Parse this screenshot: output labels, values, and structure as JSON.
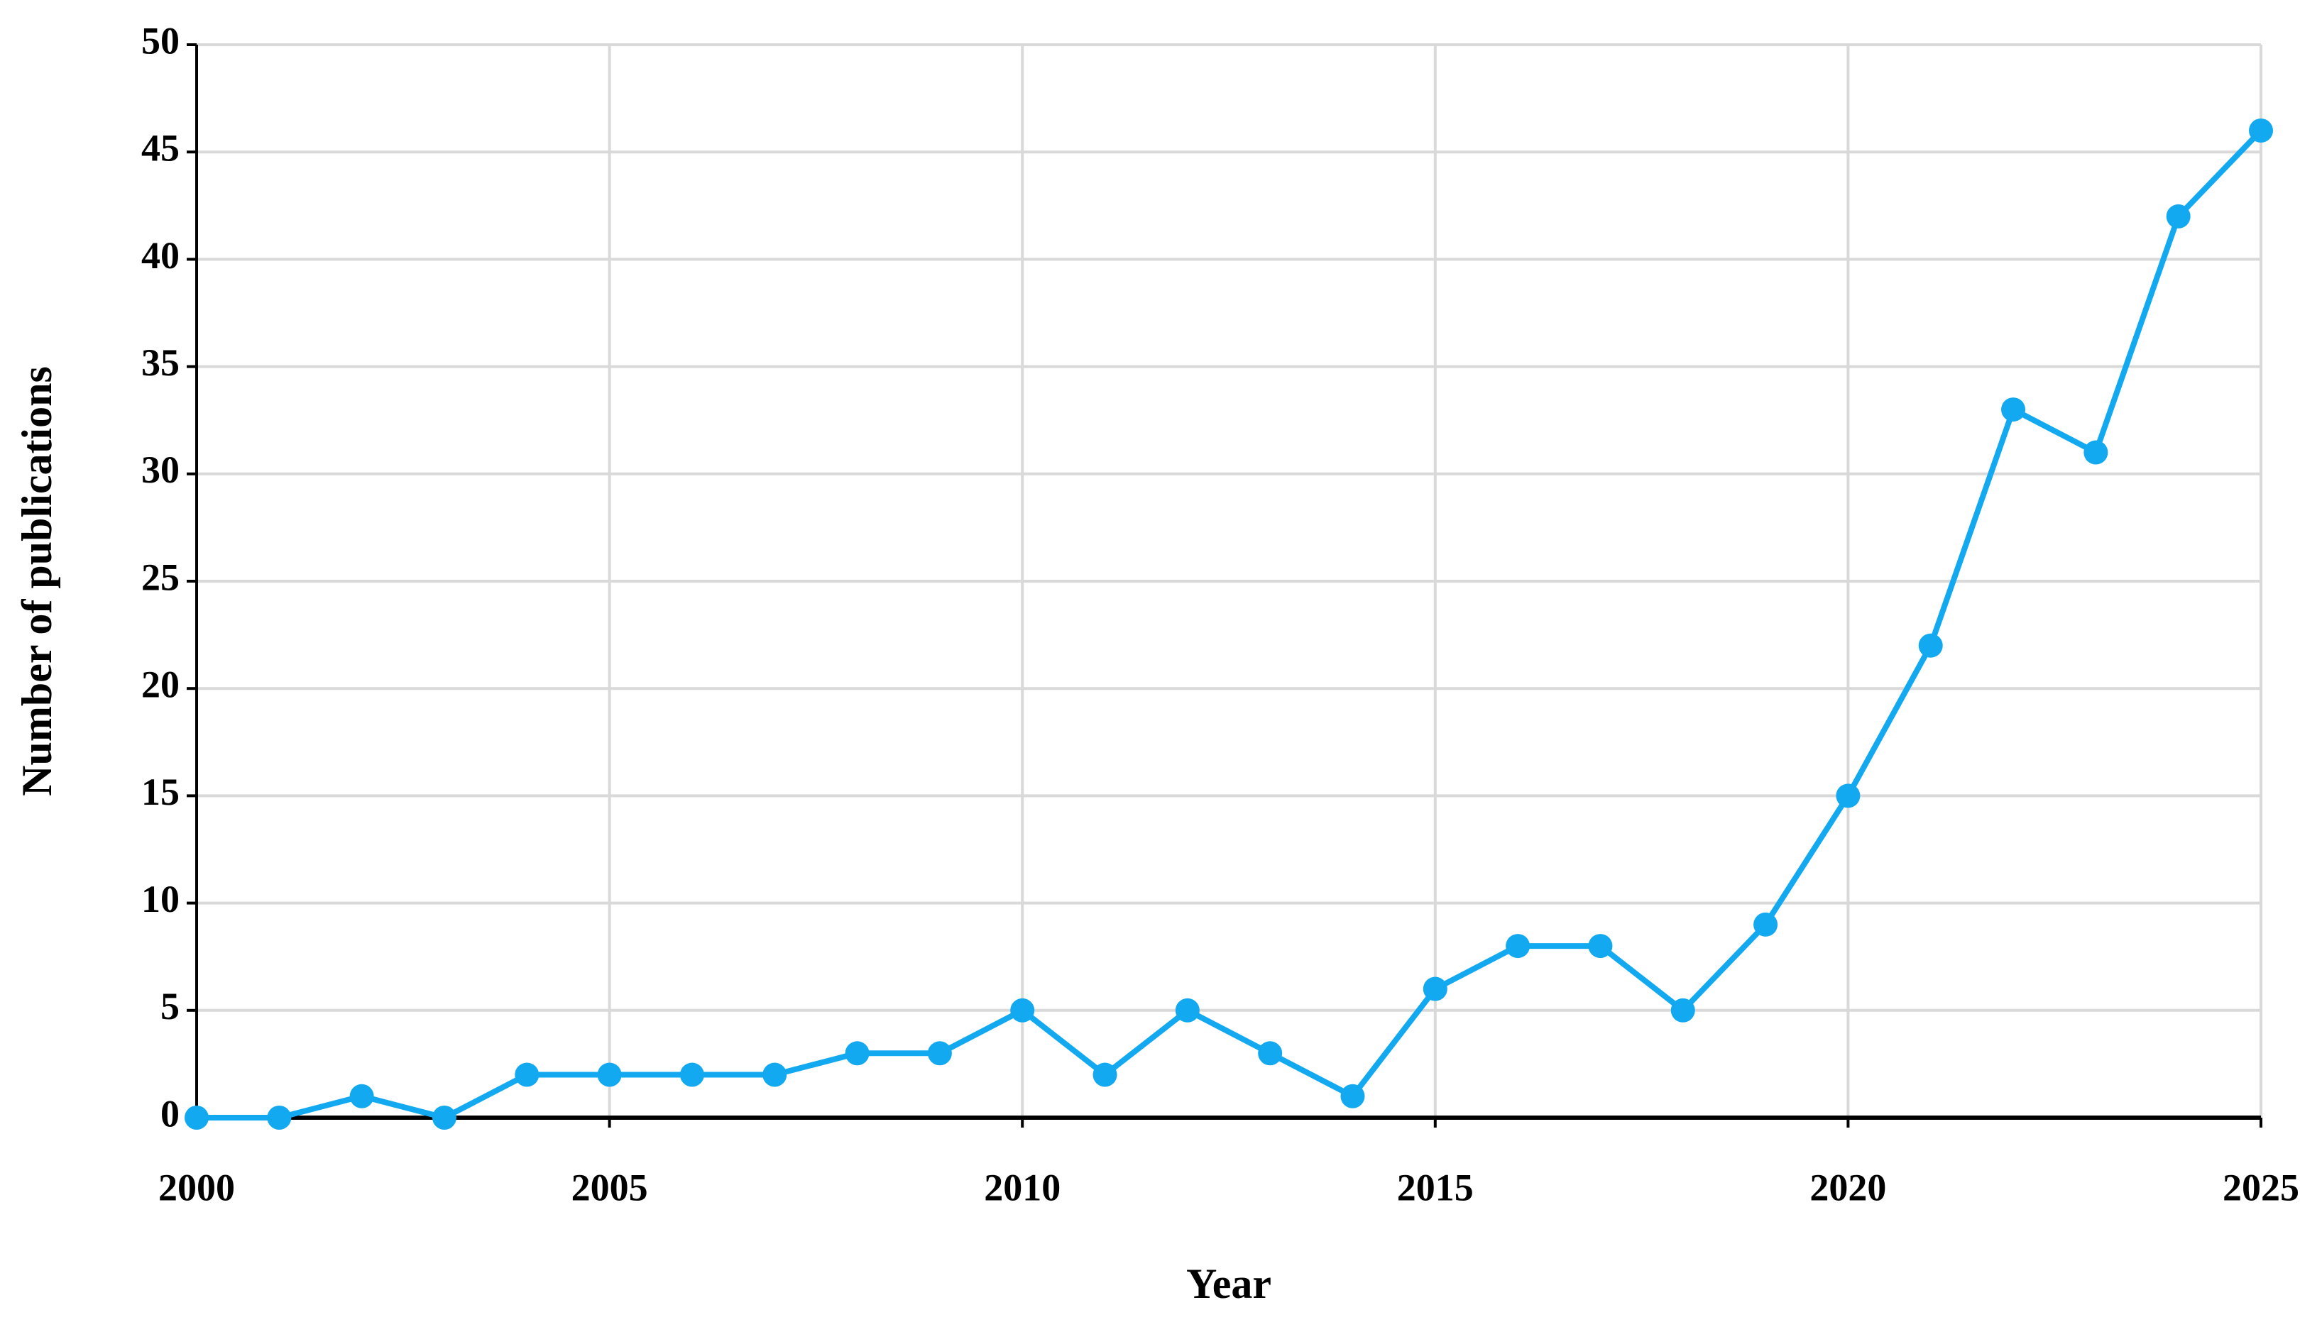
{
  "chart_data": {
    "type": "line",
    "x_label": "Year",
    "y_label": "Number of publications",
    "x": [
      2000,
      2001,
      2002,
      2003,
      2004,
      2005,
      2006,
      2007,
      2008,
      2009,
      2010,
      2011,
      2012,
      2013,
      2014,
      2015,
      2016,
      2017,
      2018,
      2019,
      2020,
      2021,
      2022,
      2023,
      2024,
      2025
    ],
    "values": [
      0,
      0,
      1,
      0,
      2,
      2,
      2,
      2,
      3,
      3,
      5,
      2,
      5,
      3,
      1,
      6,
      8,
      8,
      5,
      9,
      15,
      22,
      33,
      31,
      42,
      46
    ],
    "color": "#12a9f0",
    "xlim": [
      2000,
      2025
    ],
    "xticks": [
      2000,
      2005,
      2010,
      2015,
      2020,
      2025
    ],
    "ylim": [
      0,
      50
    ],
    "yticks": [
      0,
      5,
      10,
      15,
      20,
      25,
      30,
      35,
      40,
      45,
      50
    ],
    "grid": true
  }
}
